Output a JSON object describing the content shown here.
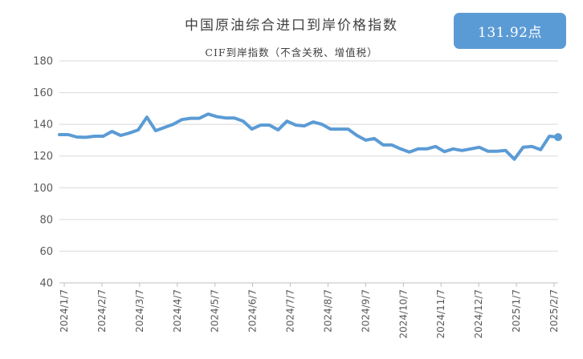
{
  "chart_data": {
    "type": "line",
    "title": "中国原油综合进口到岸价格指数",
    "subtitle": "CIF到岸指数（不含关税、增值税）",
    "badge": "131.92点",
    "ylim": [
      40,
      180
    ],
    "yticks": [
      40,
      60,
      80,
      100,
      120,
      140,
      160,
      180
    ],
    "xtick_labels": [
      "2024/1/7",
      "2024/2/7",
      "2024/3/7",
      "2024/4/7",
      "2024/5/7",
      "2024/6/7",
      "2024/7/7",
      "2024/8/7",
      "2024/9/7",
      "2024/10/7",
      "2024/11/7",
      "2024/12/7",
      "2025/1/7",
      "2025/2/7"
    ],
    "grid": "horizontal",
    "color": "#5b9bd5",
    "x": [
      "2024/1/7",
      "2024/1/14",
      "2024/1/21",
      "2024/1/28",
      "2024/2/4",
      "2024/2/11",
      "2024/2/18",
      "2024/2/25",
      "2024/3/3",
      "2024/3/10",
      "2024/3/17",
      "2024/3/24",
      "2024/3/31",
      "2024/4/7",
      "2024/4/14",
      "2024/4/21",
      "2024/4/28",
      "2024/5/5",
      "2024/5/12",
      "2024/5/19",
      "2024/5/26",
      "2024/6/2",
      "2024/6/9",
      "2024/6/16",
      "2024/6/23",
      "2024/6/30",
      "2024/7/7",
      "2024/7/14",
      "2024/7/21",
      "2024/7/28",
      "2024/8/4",
      "2024/8/11",
      "2024/8/18",
      "2024/8/25",
      "2024/9/1",
      "2024/9/8",
      "2024/9/15",
      "2024/9/22",
      "2024/9/29",
      "2024/10/6",
      "2024/10/13",
      "2024/10/20",
      "2024/10/27",
      "2024/11/3",
      "2024/11/10",
      "2024/11/17",
      "2024/11/24",
      "2024/12/1",
      "2024/12/8",
      "2024/12/15",
      "2024/12/22",
      "2024/12/29",
      "2025/1/5",
      "2025/1/12",
      "2025/1/19",
      "2025/1/26",
      "2025/2/2",
      "2025/2/9"
    ],
    "values": [
      133.5,
      133.5,
      132.0,
      131.8,
      132.5,
      132.5,
      135.5,
      133.0,
      134.5,
      136.5,
      144.5,
      136.0,
      138.0,
      140.0,
      143.0,
      143.8,
      143.8,
      146.5,
      144.8,
      144.0,
      144.0,
      142.0,
      137.0,
      139.5,
      139.5,
      136.5,
      142.0,
      139.5,
      139.0,
      141.5,
      140.0,
      137.0,
      137.0,
      137.0,
      133.0,
      130.0,
      131.0,
      127.0,
      127.0,
      124.5,
      122.5,
      124.5,
      124.5,
      126.0,
      122.8,
      124.5,
      123.5,
      124.5,
      125.5,
      123.0,
      123.0,
      123.5,
      118.0,
      125.5,
      126.0,
      124.0,
      132.5,
      131.92
    ]
  }
}
